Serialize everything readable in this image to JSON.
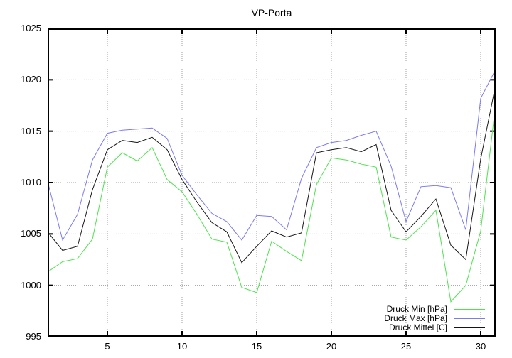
{
  "chart_data": {
    "type": "line",
    "title": "VP-Porta",
    "xlabel": "",
    "ylabel": "",
    "xlim": [
      1,
      31
    ],
    "ylim": [
      995,
      1025
    ],
    "x_ticks": [
      5,
      10,
      15,
      20,
      25,
      30
    ],
    "y_ticks": [
      995,
      1000,
      1005,
      1010,
      1015,
      1020,
      1025
    ],
    "grid": true,
    "grid_style": "dotted",
    "grid_color": "#9e9e9e",
    "frame_color": "#000000",
    "background": "#ffffff",
    "legend_position": "bottom-right-inside",
    "x": [
      1,
      2,
      3,
      4,
      5,
      6,
      7,
      8,
      9,
      10,
      11,
      12,
      13,
      14,
      15,
      16,
      17,
      18,
      19,
      20,
      21,
      22,
      23,
      24,
      25,
      26,
      27,
      28,
      29,
      30,
      31
    ],
    "series": [
      {
        "name": "Druck Min [hPa]",
        "color": "#4fe24f",
        "values": [
          1001.3,
          1002.3,
          1002.6,
          1004.5,
          1011.5,
          1012.9,
          1012.1,
          1013.4,
          1010.3,
          1009.1,
          1006.9,
          1004.5,
          1004.2,
          999.8,
          999.3,
          1004.3,
          1003.3,
          1002.4,
          1009.8,
          1012.4,
          1012.2,
          1011.8,
          1011.5,
          1004.7,
          1004.4,
          1005.7,
          1007.3,
          998.4,
          1000.0,
          1005.3,
          1017.6
        ]
      },
      {
        "name": "Druck Max [hPa]",
        "color": "#7b7bf0",
        "values": [
          1010.1,
          1004.4,
          1006.9,
          1012.2,
          1014.8,
          1015.1,
          1015.2,
          1015.3,
          1014.3,
          1010.7,
          1008.8,
          1007.0,
          1006.2,
          1004.4,
          1006.8,
          1006.7,
          1005.4,
          1010.4,
          1013.4,
          1013.9,
          1014.1,
          1014.6,
          1015.0,
          1011.6,
          1006.2,
          1009.6,
          1009.7,
          1009.5,
          1005.4,
          1018.2,
          1021.0
        ]
      },
      {
        "name": "Druck Mittel [C]",
        "color": "#151515",
        "values": [
          1005.2,
          1003.4,
          1003.8,
          1009.3,
          1013.2,
          1014.1,
          1013.9,
          1014.4,
          1013.2,
          1010.3,
          1008.1,
          1006.1,
          1005.2,
          1002.2,
          1003.8,
          1005.3,
          1004.7,
          1005.1,
          1012.9,
          1013.2,
          1013.4,
          1013.0,
          1013.7,
          1007.3,
          1005.2,
          1006.7,
          1008.4,
          1003.9,
          1002.5,
          1012.3,
          1019.5
        ]
      }
    ]
  }
}
